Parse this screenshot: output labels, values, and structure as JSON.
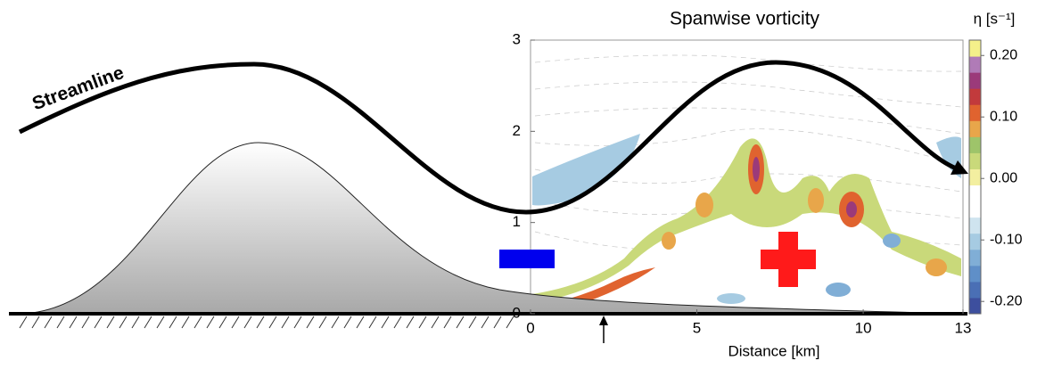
{
  "figure": {
    "title": "Spanwise vorticity",
    "streamline_label": "Streamline",
    "xlabel": "Distance [km]",
    "xlim": [
      0,
      13
    ],
    "xticks": [
      0,
      5,
      10,
      13
    ],
    "ylim": [
      0,
      3
    ],
    "yticks": [
      0,
      1,
      2,
      3
    ],
    "colorbar": {
      "label": "η [s⁻¹]",
      "lim": [
        -0.22,
        0.225
      ],
      "ticks": [
        {
          "value": 0.2,
          "label": "0.20"
        },
        {
          "value": 0.1,
          "label": "0.10"
        },
        {
          "value": 0,
          "label": "0.00"
        },
        {
          "value": -0.1,
          "label": "-0.10"
        },
        {
          "value": -0.2,
          "label": "-0.20"
        }
      ],
      "colors": [
        "#3d4f9e",
        "#4a6fb5",
        "#5f8fc8",
        "#80aed6",
        "#a6cbe2",
        "#cfe4ef",
        "#ffffff",
        "#ffffff",
        "#f3efa0",
        "#c9d97a",
        "#9ec46a",
        "#e8a64a",
        "#e0632f",
        "#c23a3c",
        "#9b3a7a",
        "#b07bb7",
        "#f4f08a"
      ]
    }
  }
}
